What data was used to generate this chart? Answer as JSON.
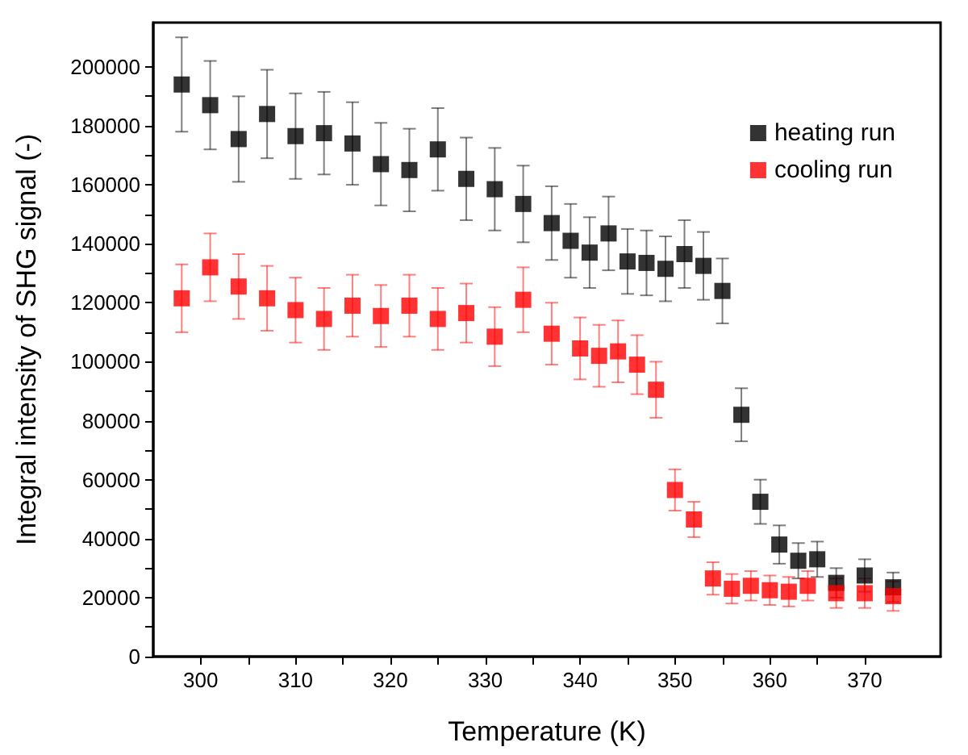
{
  "chart_data": {
    "type": "scatter",
    "xlabel": "Temperature (K)",
    "ylabel": "Integral intensity of SHG signal (-)",
    "xlim": [
      295,
      378
    ],
    "xticks": [
      300,
      310,
      320,
      330,
      340,
      350,
      360,
      370
    ],
    "ylim": [
      0,
      215000
    ],
    "yticks": [
      0,
      20000,
      40000,
      60000,
      80000,
      100000,
      120000,
      140000,
      160000,
      180000,
      200000
    ],
    "grid": false,
    "legend": "top right",
    "marker": "square",
    "series": [
      {
        "name": "heating run",
        "color": "#000000",
        "x": [
          298,
          301,
          304,
          307,
          310,
          313,
          316,
          319,
          322,
          325,
          328,
          331,
          334,
          337,
          339,
          341,
          343,
          345,
          347,
          349,
          351,
          353,
          355,
          357,
          359,
          361,
          363,
          365,
          367,
          370,
          373
        ],
        "values": [
          194000,
          187000,
          175500,
          184000,
          176500,
          177500,
          174000,
          167000,
          165000,
          172000,
          162000,
          158500,
          153500,
          147000,
          141000,
          137000,
          143500,
          134000,
          133500,
          131500,
          136500,
          132500,
          124000,
          82000,
          52500,
          38000,
          32500,
          33000,
          25000,
          27500,
          23500
        ],
        "errors": [
          16000,
          15000,
          14500,
          15000,
          14500,
          14000,
          14000,
          14000,
          14000,
          14000,
          14000,
          14000,
          13000,
          12500,
          12500,
          12000,
          12500,
          11000,
          11000,
          11000,
          11500,
          11500,
          11000,
          9000,
          7500,
          6500,
          6000,
          6000,
          5000,
          5500,
          5000
        ]
      },
      {
        "name": "cooling run",
        "color": "#ff0000",
        "x": [
          298,
          301,
          304,
          307,
          310,
          313,
          316,
          319,
          322,
          325,
          328,
          331,
          334,
          337,
          340,
          342,
          344,
          346,
          348,
          350,
          352,
          354,
          356,
          358,
          360,
          362,
          364,
          367,
          370,
          373
        ],
        "values": [
          121500,
          132000,
          125500,
          121500,
          117500,
          114500,
          119000,
          115500,
          119000,
          114500,
          116500,
          108500,
          121000,
          109500,
          104500,
          102000,
          103500,
          99000,
          90500,
          56500,
          46500,
          26500,
          23000,
          24000,
          22500,
          22000,
          24000,
          21500,
          21500,
          20500
        ],
        "errors": [
          11500,
          11500,
          11000,
          11000,
          11000,
          10500,
          10500,
          10500,
          10500,
          10500,
          10000,
          10000,
          11000,
          10500,
          10500,
          10500,
          10500,
          10000,
          9500,
          7000,
          6000,
          5500,
          5000,
          5000,
          5000,
          5000,
          5000,
          5000,
          5000,
          5000
        ]
      }
    ]
  }
}
